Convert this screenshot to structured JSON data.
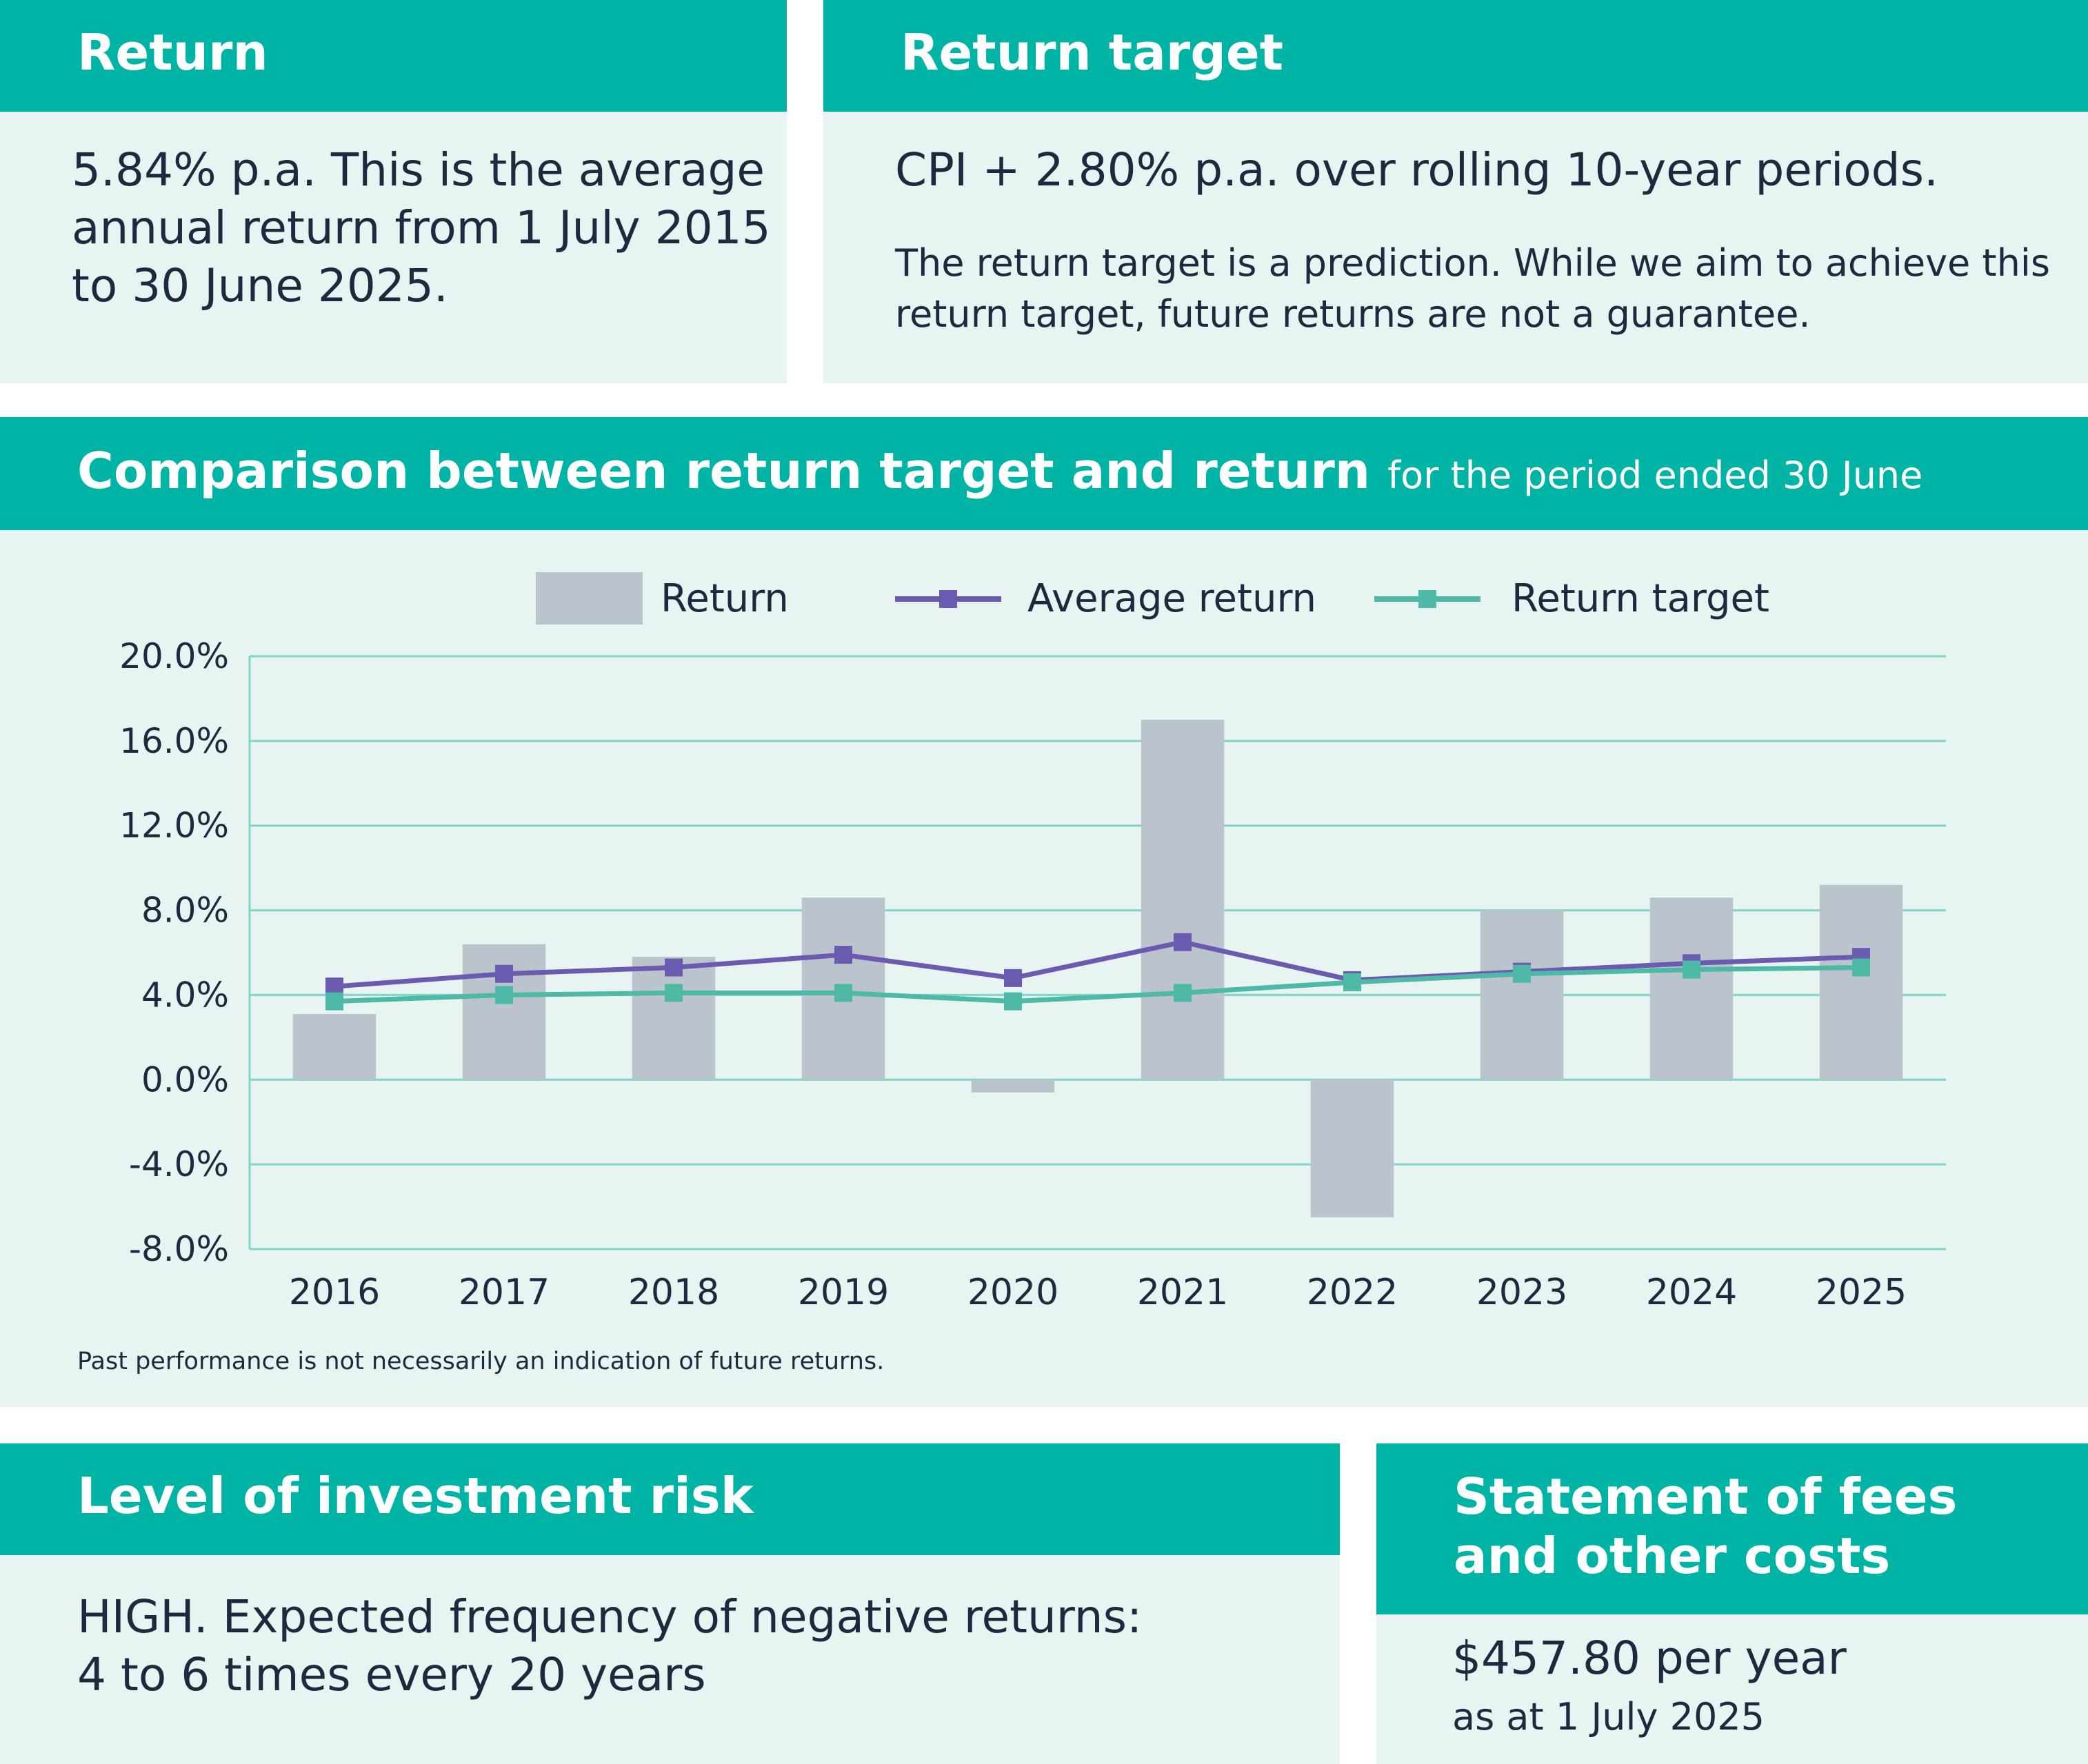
{
  "return_panel": {
    "title": "Return",
    "text": "5.84% p.a. This is the average annual return from 1 July 2015 to 30 June 2025."
  },
  "target_panel": {
    "title": "Return target",
    "text": "CPI + 2.80% p.a. over rolling 10-year periods.",
    "note": "The return target is a prediction. While we aim to achieve this return target, future returns are not a guarantee."
  },
  "chart_panel": {
    "title": "Comparison between return target and return",
    "subtitle": "for the period ended 30 June",
    "footnote": "Past performance is not necessarily an indication of future returns."
  },
  "risk_panel": {
    "title": "Level of investment risk",
    "line1": "HIGH. Expected frequency of negative returns:",
    "line2": "4 to 6 times every 20 years"
  },
  "fees_panel": {
    "title_line1": "Statement of fees",
    "title_line2": "and other costs",
    "amount": "$457.80 per year",
    "as_at": "as at 1 July 2025"
  },
  "chart_data": {
    "type": "bar",
    "title": "Comparison between return target and return",
    "subtitle": "for the period ended 30 June",
    "categories": [
      "2016",
      "2017",
      "2018",
      "2019",
      "2020",
      "2021",
      "2022",
      "2023",
      "2024",
      "2025"
    ],
    "ylim": [
      -8,
      20
    ],
    "yticks": [
      20,
      16,
      12,
      8,
      4,
      0,
      -4,
      -8
    ],
    "ytick_labels": [
      "20.0%",
      "16.0%",
      "12.0%",
      "8.0%",
      "4.0%",
      "0.0%",
      "-4.0%",
      "-8.0%"
    ],
    "series": [
      {
        "name": "Return",
        "kind": "bar",
        "color": "#bbc4cc",
        "values": [
          3.1,
          6.4,
          5.8,
          8.6,
          -0.6,
          17.0,
          -6.5,
          8.0,
          8.6,
          9.2
        ]
      },
      {
        "name": "Average return",
        "kind": "line",
        "color": "#6a5bb0",
        "values": [
          4.4,
          5.0,
          5.3,
          5.9,
          4.8,
          6.5,
          4.7,
          5.1,
          5.5,
          5.8
        ]
      },
      {
        "name": "Return target",
        "kind": "line",
        "color": "#4db9a6",
        "values": [
          3.7,
          4.0,
          4.1,
          4.1,
          3.7,
          4.1,
          4.6,
          5.0,
          5.2,
          5.3
        ]
      }
    ],
    "legend_position": "top",
    "grid": true,
    "colors": {
      "grid": "#7fd3c8",
      "header": "#00b4a5",
      "panel": "#e8f4f1"
    }
  }
}
